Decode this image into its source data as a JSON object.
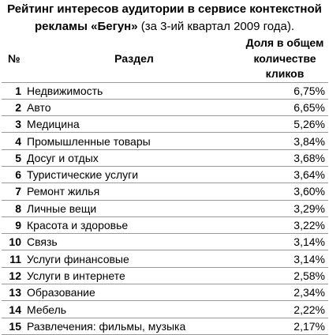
{
  "title": {
    "bold": "Рейтинг интересов аудитории в сервисе контекстной рекламы «Бегун»",
    "rest": " (за 3-ий квартал 2009 года)."
  },
  "header": {
    "num": "№",
    "section": "Раздел",
    "share": "Доля в общем количестве кликов"
  },
  "rows": [
    {
      "num": "1",
      "section": "Недвижимость",
      "share": "6,75%"
    },
    {
      "num": "2",
      "section": "Авто",
      "share": "6,65%"
    },
    {
      "num": "3",
      "section": "Медицина",
      "share": "5,26%"
    },
    {
      "num": "4",
      "section": "Промышленные товары",
      "share": "3,84%"
    },
    {
      "num": "5",
      "section": "Досуг и отдых",
      "share": "3,68%"
    },
    {
      "num": "6",
      "section": "Туристические услуги",
      "share": "3,64%"
    },
    {
      "num": "7",
      "section": "Ремонт жилья",
      "share": "3,60%"
    },
    {
      "num": "8",
      "section": "Личные вещи",
      "share": "3,29%"
    },
    {
      "num": "9",
      "section": "Красота и здоровье",
      "share": "3,22%"
    },
    {
      "num": "10",
      "section": "Связь",
      "share": "3,14%"
    },
    {
      "num": "11",
      "section": "Услуги финансовые",
      "share": "3,14%"
    },
    {
      "num": "12",
      "section": "Услуги в интернете",
      "share": "2,58%"
    },
    {
      "num": "13",
      "section": "Образование",
      "share": "2,34%"
    },
    {
      "num": "14",
      "section": "Мебель",
      "share": "2,22%"
    },
    {
      "num": "15",
      "section": "Развлечения: фильмы, музыка",
      "share": "2,17%"
    }
  ]
}
